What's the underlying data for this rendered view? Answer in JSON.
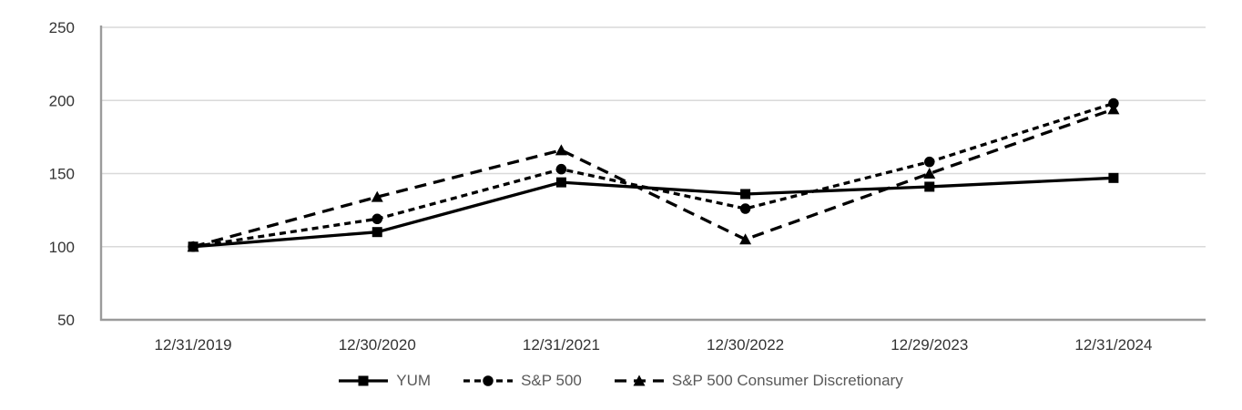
{
  "chart_data": {
    "type": "line",
    "title": "",
    "xlabel": "",
    "ylabel": "",
    "categories": [
      "12/31/2019",
      "12/30/2020",
      "12/31/2021",
      "12/30/2022",
      "12/29/2023",
      "12/31/2024"
    ],
    "series": [
      {
        "name": "YUM",
        "marker": "square",
        "dash": "solid",
        "values": [
          100,
          110,
          144,
          136,
          141,
          147
        ]
      },
      {
        "name": "S&P 500",
        "marker": "circle",
        "dash": "short-dash",
        "values": [
          100,
          119,
          153,
          126,
          158,
          198
        ]
      },
      {
        "name": "S&P 500 Consumer Discretionary",
        "marker": "triangle",
        "dash": "long-dash",
        "values": [
          100,
          134,
          166,
          105,
          150,
          194
        ]
      }
    ],
    "yticks": [
      250,
      200,
      150,
      100,
      50
    ],
    "ylim": [
      50,
      250
    ],
    "grid": true,
    "legend_position": "bottom",
    "colors": {
      "series": "#000000",
      "gridline": "#d9d9d9",
      "axis": "#9b9b9b",
      "tick_text": "#333333",
      "legend_text": "#595959",
      "background": "#ffffff"
    }
  }
}
